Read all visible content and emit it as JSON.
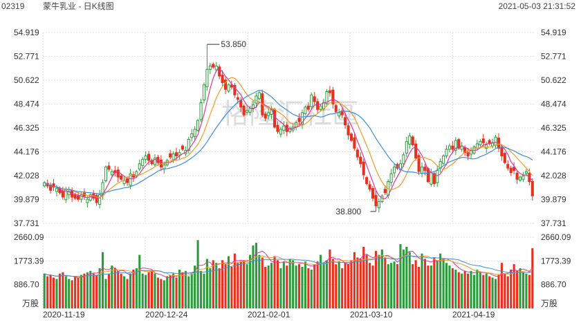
{
  "header": {
    "code": "02319",
    "title": "蒙牛乳业 - 日K线图",
    "timestamp": "2021-05-03 21:31:52"
  },
  "watermark": "格隆汇社區",
  "colors": {
    "up": "#2a9d3a",
    "down": "#e8301e",
    "ma5": "#e0359a",
    "ma10": "#f39a28",
    "ma20": "#3a8ed8",
    "grid": "#dcdcdc",
    "text": "#333333"
  },
  "chart_data": [
    {
      "type": "candlestick",
      "title": "",
      "y_ticks": [
        "54.919",
        "52.771",
        "50.622",
        "48.474",
        "46.325",
        "44.176",
        "42.028",
        "39.879",
        "37.731"
      ],
      "ylim": [
        37.731,
        54.919
      ],
      "x_tick_labels": [
        "2020-11-19",
        "2020-12-24",
        "2021-02-01",
        "2021-03-10",
        "2021-04-19"
      ],
      "annotations": [
        {
          "text": "53.850",
          "value": 53.85,
          "index": 53
        },
        {
          "text": "38.800",
          "value": 38.8,
          "index": 108
        }
      ],
      "close": [
        41.4,
        41.1,
        40.7,
        41.0,
        40.9,
        40.5,
        40.1,
        40.8,
        40.6,
        40.1,
        40.0,
        39.9,
        40.3,
        40.2,
        39.9,
        40.3,
        40.0,
        39.6,
        40.3,
        41.4,
        42.8,
        42.6,
        42.4,
        42.3,
        41.9,
        41.7,
        41.6,
        41.4,
        42.2,
        41.9,
        42.4,
        43.1,
        43.5,
        43.8,
        43.4,
        43.1,
        43.6,
        43.2,
        42.8,
        43.0,
        43.4,
        43.7,
        44.0,
        43.8,
        44.1,
        44.4,
        44.3,
        45.3,
        45.8,
        46.2,
        47.0,
        48.6,
        50.2,
        51.6,
        51.9,
        51.8,
        51.9,
        51.0,
        50.4,
        49.8,
        50.2,
        50.0,
        49.3,
        48.9,
        48.2,
        47.5,
        47.9,
        48.1,
        48.4,
        49.2,
        49.5,
        47.5,
        47.2,
        47.7,
        48.0,
        46.4,
        46.0,
        46.2,
        46.5,
        46.0,
        46.3,
        46.4,
        46.8,
        46.9,
        47.7,
        48.2,
        48.0,
        49.3,
        48.7,
        48.0,
        48.3,
        48.6,
        49.6,
        49.5,
        48.5,
        47.8,
        47.7,
        47.5,
        46.6,
        45.7,
        45.2,
        44.5,
        43.7,
        43.1,
        42.1,
        41.3,
        40.8,
        40.0,
        39.3,
        39.7,
        40.2,
        40.5,
        41.5,
        42.2,
        42.8,
        42.7,
        43.1,
        43.9,
        45.1,
        45.6,
        44.8,
        43.6,
        42.4,
        42.8,
        42.5,
        41.5,
        42.3,
        41.3,
        42.5,
        43.3,
        43.8,
        44.4,
        44.7,
        44.4,
        45.2,
        44.5,
        44.7,
        44.1,
        43.8,
        44.3,
        44.6,
        44.9,
        45.1,
        45.0,
        44.8,
        44.9,
        45.0,
        45.5,
        44.5,
        43.8,
        43.2,
        42.7,
        42.3,
        42.5,
        41.7,
        41.9,
        42.0,
        42.4,
        41.5,
        40.2
      ]
    },
    {
      "type": "bar",
      "title": "",
      "unit_label": "万股",
      "y_ticks": [
        "2660.09",
        "1773.39",
        "886.70"
      ],
      "ylim": [
        0,
        2660.09
      ],
      "values": [
        1300,
        1200,
        1250,
        1150,
        1100,
        1300,
        1350,
        1200,
        1100,
        1050,
        1200,
        1150,
        1250,
        1300,
        1350,
        1400,
        1300,
        1250,
        1500,
        2100,
        1100,
        1300,
        1600,
        1500,
        1400,
        1300,
        1200,
        1100,
        1300,
        1450,
        1500,
        2000,
        1300,
        1250,
        1350,
        1400,
        1300,
        1150,
        1100,
        1050,
        1200,
        1250,
        1300,
        1150,
        1450,
        1350,
        1400,
        1200,
        1300,
        1600,
        2550,
        1400,
        1300,
        1850,
        1500,
        1800,
        1700,
        1500,
        1800,
        1650,
        1950,
        1550,
        2050,
        1700,
        1750,
        1800,
        1650,
        2000,
        2350,
        2450,
        2000,
        1900,
        1550,
        1600,
        1700,
        1950,
        1800,
        1500,
        1750,
        1600,
        1850,
        1800,
        1600,
        1650,
        1550,
        1750,
        1500,
        1450,
        1650,
        1750,
        2000,
        1700,
        1800,
        2200,
        1850,
        1650,
        1750,
        1500,
        1700,
        1650,
        1800,
        2100,
        1900,
        1850,
        2300,
        2000,
        1700,
        1600,
        2150,
        2000,
        2200,
        1900,
        1650,
        1700,
        1750,
        1650,
        2400,
        2200,
        2300,
        2100,
        1650,
        1800,
        1550,
        2050,
        1850,
        1600,
        1600,
        1900,
        1800,
        2050,
        1850,
        1700,
        1600,
        1500,
        1450,
        1350,
        1300,
        1400,
        1300,
        1400,
        1250,
        1450,
        1350,
        1250,
        1300,
        1200,
        1150,
        1100,
        1250,
        1700,
        1300,
        1200,
        1450,
        1650,
        1400,
        1500,
        1350,
        1300,
        1250,
        2250
      ]
    }
  ]
}
